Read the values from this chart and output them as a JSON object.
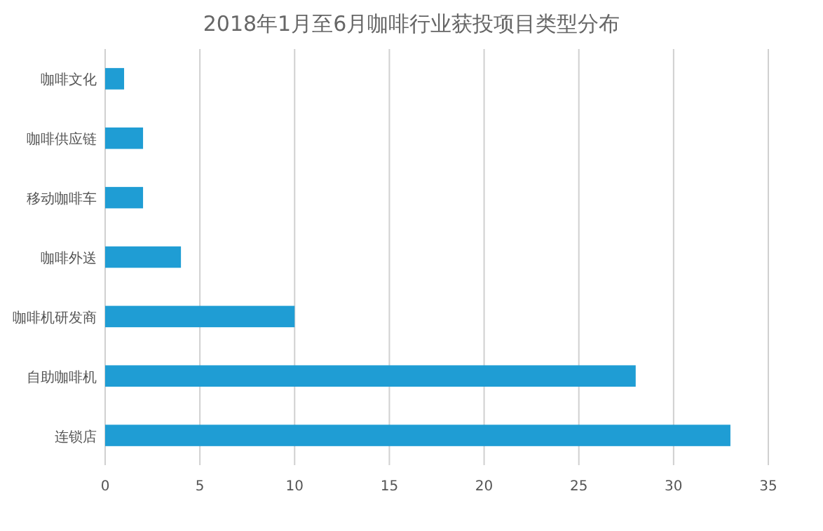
{
  "chart_data": {
    "type": "bar",
    "orientation": "horizontal",
    "title": "2018年1月至6月咖啡行业获投项目类型分布",
    "categories": [
      "咖啡文化",
      "咖啡供应链",
      "移动咖啡车",
      "咖啡外送",
      "咖啡机研发商",
      "自助咖啡机",
      "连锁店"
    ],
    "values": [
      1,
      2,
      2,
      4,
      10,
      28,
      33
    ],
    "color": "#1f9dd4",
    "xlim": [
      0,
      35
    ],
    "xticks": [
      0,
      5,
      10,
      15,
      20,
      25,
      30,
      35
    ],
    "grid": "x"
  }
}
